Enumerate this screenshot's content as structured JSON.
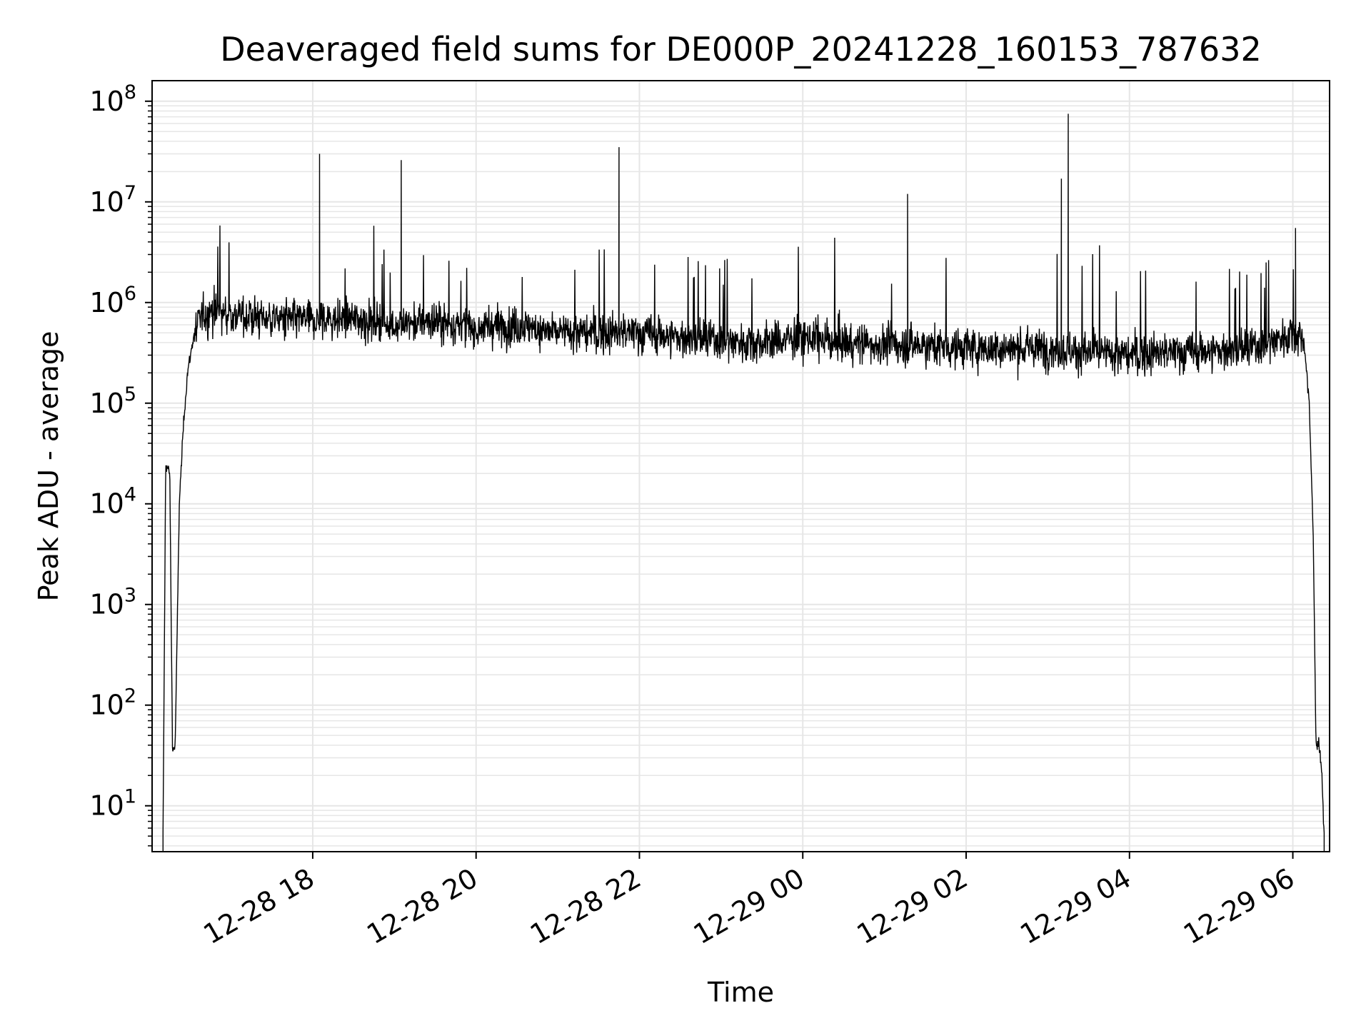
{
  "chart_data": {
    "type": "line",
    "title": "Deaveraged field sums for DE000P_20241228_160153_787632",
    "xlabel": "Time",
    "ylabel": "Peak ADU - average",
    "yscale": "log",
    "grid": true,
    "colors": {
      "line": "#000000",
      "grid": "#e6e6e6",
      "axes": "#000000",
      "background": "#ffffff"
    },
    "xlim": [
      "2024-12-28 16:02",
      "2024-12-29 06:27"
    ],
    "ylim": [
      3.5,
      160000000
    ],
    "x_ticks": [
      {
        "value": "2024-12-28 18:00",
        "label": "12-28 18"
      },
      {
        "value": "2024-12-28 20:00",
        "label": "12-28 20"
      },
      {
        "value": "2024-12-28 22:00",
        "label": "12-28 22"
      },
      {
        "value": "2024-12-29 00:00",
        "label": "12-29 00"
      },
      {
        "value": "2024-12-29 02:00",
        "label": "12-29 02"
      },
      {
        "value": "2024-12-29 04:00",
        "label": "12-29 04"
      },
      {
        "value": "2024-12-29 06:00",
        "label": "12-29 06"
      }
    ],
    "y_ticks": [
      {
        "value": 10,
        "base": "10",
        "exp": "1"
      },
      {
        "value": 100,
        "base": "10",
        "exp": "2"
      },
      {
        "value": 1000,
        "base": "10",
        "exp": "3"
      },
      {
        "value": 10000,
        "base": "10",
        "exp": "4"
      },
      {
        "value": 100000,
        "base": "10",
        "exp": "5"
      },
      {
        "value": 1000000,
        "base": "10",
        "exp": "6"
      },
      {
        "value": 10000000,
        "base": "10",
        "exp": "7"
      },
      {
        "value": 100000000,
        "base": "10",
        "exp": "8"
      }
    ],
    "series": [
      {
        "x": [
          "2024-12-28 16:10",
          "2024-12-28 16:12",
          "2024-12-28 16:15",
          "2024-12-28 16:17",
          "2024-12-28 16:19",
          "2024-12-28 16:22",
          "2024-12-28 16:25",
          "2024-12-28 16:28",
          "2024-12-28 16:33",
          "2024-12-28 16:38",
          "2024-12-28 16:45",
          "2024-12-28 17:00",
          "2024-12-28 17:30",
          "2024-12-28 18:00",
          "2024-12-28 18:30",
          "2024-12-28 19:00",
          "2024-12-28 19:30",
          "2024-12-28 20:00",
          "2024-12-28 20:30",
          "2024-12-28 21:00",
          "2024-12-28 21:30",
          "2024-12-28 22:00",
          "2024-12-28 22:30",
          "2024-12-28 23:00",
          "2024-12-28 23:30",
          "2024-12-29 00:00",
          "2024-12-29 00:30",
          "2024-12-29 01:00",
          "2024-12-29 01:30",
          "2024-12-29 02:00",
          "2024-12-29 02:30",
          "2024-12-29 03:00",
          "2024-12-29 03:30",
          "2024-12-29 04:00",
          "2024-12-29 04:30",
          "2024-12-29 05:00",
          "2024-12-29 05:30",
          "2024-12-29 06:00",
          "2024-12-29 06:08",
          "2024-12-29 06:12",
          "2024-12-29 06:15",
          "2024-12-29 06:17",
          "2024-12-29 06:19",
          "2024-12-29 06:21",
          "2024-12-29 06:23"
        ],
        "values": [
          5,
          25000,
          20000,
          35,
          40,
          10000,
          60000,
          200000,
          500000,
          700000,
          800000,
          750000,
          700000,
          650000,
          700000,
          600000,
          650000,
          550000,
          600000,
          500000,
          500000,
          500000,
          450000,
          420000,
          400000,
          450000,
          400000,
          380000,
          380000,
          350000,
          350000,
          350000,
          320000,
          300000,
          320000,
          330000,
          350000,
          500000,
          450000,
          100000,
          5000,
          40,
          40,
          25,
          5
        ],
        "style": "noisy around the shown values, roughly ±0.3 decade",
        "spikes": [
          {
            "x": "2024-12-28 18:05",
            "y": 30000000
          },
          {
            "x": "2024-12-28 19:05",
            "y": 26000000
          },
          {
            "x": "2024-12-28 21:45",
            "y": 35000000
          },
          {
            "x": "2024-12-29 01:17",
            "y": 12000000
          },
          {
            "x": "2024-12-29 03:10",
            "y": 17000000
          },
          {
            "x": "2024-12-29 03:15",
            "y": 75000000
          },
          {
            "x": "2024-12-29 06:02",
            "y": 5500000
          }
        ]
      }
    ]
  }
}
